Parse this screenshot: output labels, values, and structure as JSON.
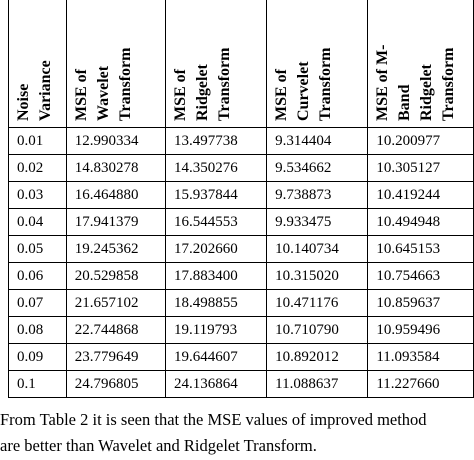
{
  "table": {
    "header": [
      [
        "Noise",
        "Variance"
      ],
      [
        "MSE of",
        "Wavelet",
        "Transform"
      ],
      [
        "MSE of",
        "Ridgelet",
        "Transform"
      ],
      [
        "MSE of",
        "Curvelet",
        "Transform"
      ],
      [
        "MSE of M-",
        "Band",
        "Ridgelet",
        "Transform"
      ]
    ],
    "rows": [
      [
        "0.01",
        "12.990334",
        "13.497738",
        "9.314404",
        "10.200977"
      ],
      [
        "0.02",
        "14.830278",
        "14.350276",
        "9.534662",
        "10.305127"
      ],
      [
        "0.03",
        "16.464880",
        "15.937844",
        "9.738873",
        "10.419244"
      ],
      [
        "0.04",
        "17.941379",
        "16.544553",
        "9.933475",
        "10.494948"
      ],
      [
        "0.05",
        "19.245362",
        "17.202660",
        "10.140734",
        "10.645153"
      ],
      [
        "0.06",
        "20.529858",
        "17.883400",
        "10.315020",
        "10.754663"
      ],
      [
        "0.07",
        "21.657102",
        "18.498855",
        "10.471176",
        "10.859637"
      ],
      [
        "0.08",
        "22.744868",
        "19.119793",
        "10.710790",
        "10.959496"
      ],
      [
        "0.09",
        "23.779649",
        "19.644607",
        "10.892012",
        "11.093584"
      ],
      [
        "0.1",
        "24.796805",
        "24.136864",
        "11.088637",
        "11.227660"
      ]
    ]
  },
  "paragraph": {
    "lines": [
      "From Table 2 it is seen that the MSE values of improved method",
      "are better than Wavelet and Ridgelet Transform."
    ]
  }
}
